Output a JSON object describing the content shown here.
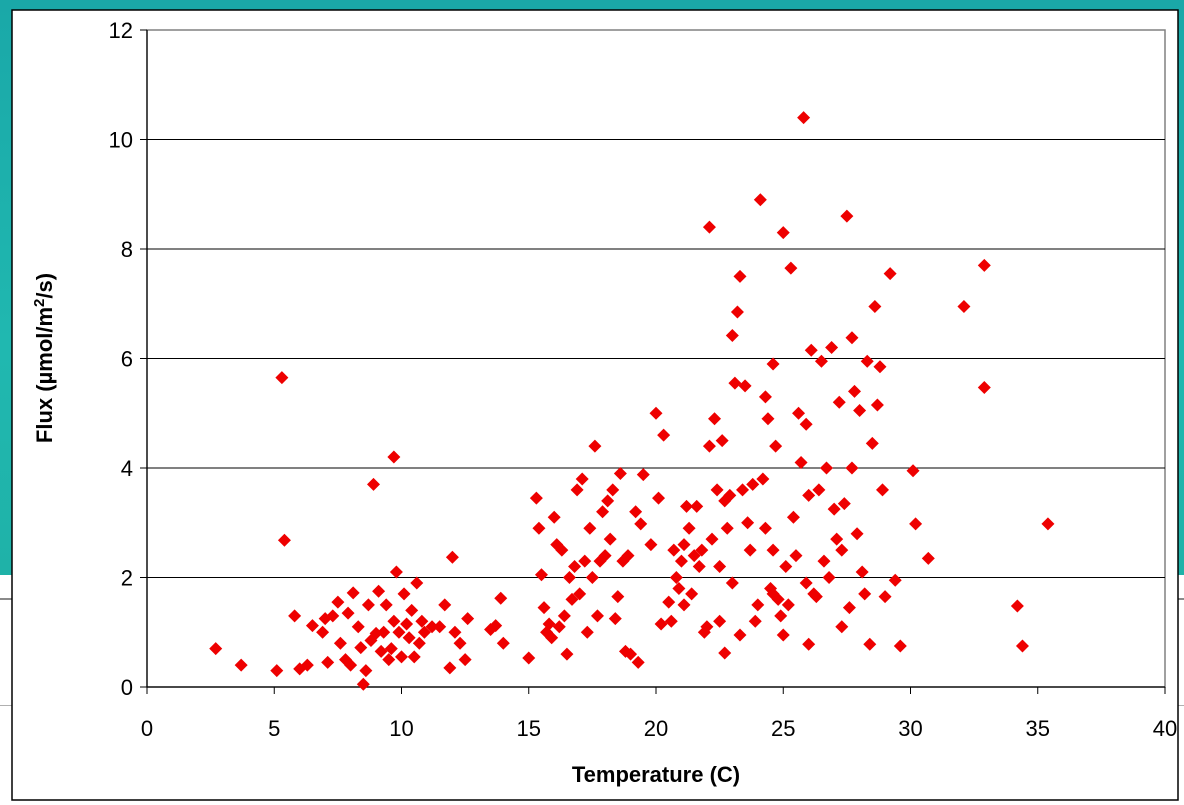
{
  "chart_data": {
    "type": "scatter",
    "title": "",
    "xlabel": "Temperature (C)",
    "ylabel": "Flux (µmol/m²/s)",
    "ylabel_parts": [
      "Flux (",
      "µ",
      "mol/m",
      "2",
      "/s)"
    ],
    "xlim": [
      0,
      40
    ],
    "ylim": [
      0,
      12
    ],
    "xticks": [
      "0",
      "5",
      "10",
      "15",
      "20",
      "25",
      "30",
      "35",
      "40"
    ],
    "yticks": [
      "0",
      "2",
      "4",
      "6",
      "8",
      "10",
      "12"
    ],
    "grid": "horizontal",
    "legend": "none",
    "marker": "diamond",
    "marker_color": "#ee0000",
    "series": [
      {
        "points": [
          [
            2.7,
            0.7
          ],
          [
            3.7,
            0.4
          ],
          [
            5.1,
            0.3
          ],
          [
            5.3,
            5.65
          ],
          [
            5.4,
            2.68
          ],
          [
            5.8,
            1.3
          ],
          [
            6.0,
            0.33
          ],
          [
            6.3,
            0.4
          ],
          [
            6.5,
            1.12
          ],
          [
            6.9,
            1.0
          ],
          [
            7.0,
            1.25
          ],
          [
            7.1,
            0.45
          ],
          [
            7.3,
            1.3
          ],
          [
            7.5,
            1.55
          ],
          [
            7.6,
            0.8
          ],
          [
            7.8,
            0.5
          ],
          [
            7.9,
            1.35
          ],
          [
            8.0,
            0.4
          ],
          [
            8.1,
            1.72
          ],
          [
            8.3,
            1.1
          ],
          [
            8.4,
            0.72
          ],
          [
            8.5,
            0.05
          ],
          [
            8.6,
            0.3
          ],
          [
            8.7,
            1.5
          ],
          [
            8.8,
            0.85
          ],
          [
            8.9,
            3.7
          ],
          [
            9.0,
            0.98
          ],
          [
            9.1,
            1.75
          ],
          [
            9.2,
            0.65
          ],
          [
            9.3,
            1.0
          ],
          [
            9.4,
            1.5
          ],
          [
            9.5,
            0.5
          ],
          [
            9.6,
            0.7
          ],
          [
            9.7,
            1.2
          ],
          [
            9.7,
            4.2
          ],
          [
            9.8,
            2.1
          ],
          [
            9.9,
            1.0
          ],
          [
            10.0,
            0.55
          ],
          [
            10.1,
            1.7
          ],
          [
            10.2,
            1.15
          ],
          [
            10.3,
            0.9
          ],
          [
            10.4,
            1.4
          ],
          [
            10.5,
            0.55
          ],
          [
            10.6,
            1.9
          ],
          [
            10.7,
            0.8
          ],
          [
            10.8,
            1.2
          ],
          [
            10.9,
            1.0
          ],
          [
            11.2,
            1.1
          ],
          [
            11.5,
            1.1
          ],
          [
            11.7,
            1.5
          ],
          [
            11.9,
            0.35
          ],
          [
            12.0,
            2.37
          ],
          [
            12.1,
            1.0
          ],
          [
            12.3,
            0.8
          ],
          [
            12.5,
            0.5
          ],
          [
            12.6,
            1.25
          ],
          [
            13.5,
            1.05
          ],
          [
            13.7,
            1.12
          ],
          [
            13.9,
            1.62
          ],
          [
            14.0,
            0.8
          ],
          [
            15.0,
            0.53
          ],
          [
            15.3,
            3.45
          ],
          [
            15.4,
            2.9
          ],
          [
            15.5,
            2.05
          ],
          [
            15.6,
            1.45
          ],
          [
            15.7,
            1.0
          ],
          [
            15.8,
            1.15
          ],
          [
            15.9,
            0.9
          ],
          [
            16.0,
            3.1
          ],
          [
            16.1,
            2.6
          ],
          [
            16.2,
            1.1
          ],
          [
            16.3,
            2.5
          ],
          [
            16.4,
            1.3
          ],
          [
            16.5,
            0.6
          ],
          [
            16.6,
            2.0
          ],
          [
            16.7,
            1.6
          ],
          [
            16.8,
            2.2
          ],
          [
            16.9,
            3.6
          ],
          [
            17.0,
            1.7
          ],
          [
            17.1,
            3.8
          ],
          [
            17.2,
            2.3
          ],
          [
            17.3,
            1.0
          ],
          [
            17.4,
            2.9
          ],
          [
            17.5,
            2.0
          ],
          [
            17.6,
            4.4
          ],
          [
            17.7,
            1.3
          ],
          [
            17.8,
            2.3
          ],
          [
            17.9,
            3.2
          ],
          [
            18.0,
            2.4
          ],
          [
            18.1,
            3.4
          ],
          [
            18.2,
            2.7
          ],
          [
            18.3,
            3.6
          ],
          [
            18.4,
            1.25
          ],
          [
            18.5,
            1.65
          ],
          [
            18.6,
            3.9
          ],
          [
            18.7,
            2.3
          ],
          [
            18.8,
            0.65
          ],
          [
            18.9,
            2.4
          ],
          [
            19.0,
            0.6
          ],
          [
            19.2,
            3.2
          ],
          [
            19.3,
            0.45
          ],
          [
            19.4,
            2.98
          ],
          [
            19.5,
            3.88
          ],
          [
            19.8,
            2.6
          ],
          [
            20.0,
            5.0
          ],
          [
            20.1,
            3.45
          ],
          [
            20.2,
            1.15
          ],
          [
            20.3,
            4.6
          ],
          [
            20.5,
            1.55
          ],
          [
            20.6,
            1.2
          ],
          [
            20.7,
            2.5
          ],
          [
            20.8,
            2.0
          ],
          [
            20.9,
            1.8
          ],
          [
            21.0,
            2.3
          ],
          [
            21.1,
            2.6
          ],
          [
            21.2,
            3.3
          ],
          [
            21.3,
            2.9
          ],
          [
            21.4,
            1.7
          ],
          [
            21.5,
            2.4
          ],
          [
            21.6,
            3.3
          ],
          [
            21.7,
            2.2
          ],
          [
            21.8,
            2.5
          ],
          [
            21.9,
            1.0
          ],
          [
            22.0,
            1.1
          ],
          [
            22.1,
            8.4
          ],
          [
            22.1,
            4.4
          ],
          [
            22.2,
            2.7
          ],
          [
            22.3,
            4.9
          ],
          [
            22.4,
            3.6
          ],
          [
            22.5,
            2.2
          ],
          [
            22.6,
            4.5
          ],
          [
            22.7,
            0.62
          ],
          [
            22.8,
            2.9
          ],
          [
            22.9,
            3.5
          ],
          [
            23.0,
            6.42
          ],
          [
            23.1,
            5.55
          ],
          [
            23.2,
            6.85
          ],
          [
            23.3,
            7.5
          ],
          [
            23.3,
            0.95
          ],
          [
            23.4,
            3.6
          ],
          [
            23.5,
            5.5
          ],
          [
            23.6,
            3.0
          ],
          [
            23.7,
            2.5
          ],
          [
            23.8,
            3.7
          ],
          [
            23.9,
            1.2
          ],
          [
            24.0,
            1.5
          ],
          [
            24.1,
            8.9
          ],
          [
            24.2,
            3.8
          ],
          [
            24.3,
            2.9
          ],
          [
            24.4,
            4.9
          ],
          [
            24.5,
            1.8
          ],
          [
            24.6,
            5.9
          ],
          [
            24.6,
            2.5
          ],
          [
            24.7,
            4.4
          ],
          [
            24.8,
            1.6
          ],
          [
            24.9,
            1.3
          ],
          [
            25.0,
            8.3
          ],
          [
            25.1,
            2.2
          ],
          [
            25.2,
            1.5
          ],
          [
            25.3,
            7.65
          ],
          [
            25.4,
            3.1
          ],
          [
            25.5,
            2.4
          ],
          [
            25.6,
            5.0
          ],
          [
            25.7,
            4.1
          ],
          [
            25.8,
            10.4
          ],
          [
            25.9,
            1.9
          ],
          [
            26.0,
            3.5
          ],
          [
            26.1,
            6.15
          ],
          [
            26.2,
            1.7
          ],
          [
            26.3,
            1.65
          ],
          [
            26.4,
            3.6
          ],
          [
            26.5,
            5.95
          ],
          [
            26.6,
            2.3
          ],
          [
            26.7,
            4.0
          ],
          [
            26.8,
            2.0
          ],
          [
            26.9,
            6.2
          ],
          [
            27.0,
            3.25
          ],
          [
            27.1,
            2.7
          ],
          [
            27.2,
            5.2
          ],
          [
            27.3,
            2.5
          ],
          [
            27.4,
            3.35
          ],
          [
            27.5,
            8.6
          ],
          [
            27.6,
            1.45
          ],
          [
            27.7,
            6.38
          ],
          [
            27.8,
            5.4
          ],
          [
            27.9,
            2.8
          ],
          [
            28.0,
            5.05
          ],
          [
            28.1,
            2.1
          ],
          [
            28.2,
            1.7
          ],
          [
            28.3,
            5.95
          ],
          [
            28.4,
            0.78
          ],
          [
            28.5,
            4.45
          ],
          [
            28.6,
            6.95
          ],
          [
            28.7,
            5.15
          ],
          [
            28.8,
            5.85
          ],
          [
            28.9,
            3.6
          ],
          [
            29.0,
            1.65
          ],
          [
            29.2,
            7.55
          ],
          [
            29.4,
            1.95
          ],
          [
            29.6,
            0.75
          ],
          [
            30.1,
            3.95
          ],
          [
            30.2,
            2.98
          ],
          [
            30.7,
            2.35
          ],
          [
            32.1,
            6.95
          ],
          [
            32.9,
            7.7
          ],
          [
            32.9,
            5.47
          ],
          [
            34.2,
            1.48
          ],
          [
            34.4,
            0.75
          ],
          [
            35.4,
            2.98
          ],
          [
            22.5,
            1.2
          ],
          [
            23.0,
            1.9
          ],
          [
            24.6,
            1.7
          ],
          [
            25.0,
            0.95
          ],
          [
            26.0,
            0.78
          ],
          [
            27.3,
            1.1
          ],
          [
            27.7,
            4.0
          ],
          [
            25.9,
            4.8
          ],
          [
            24.3,
            5.3
          ],
          [
            22.7,
            3.4
          ],
          [
            21.1,
            1.5
          ]
        ]
      }
    ]
  }
}
